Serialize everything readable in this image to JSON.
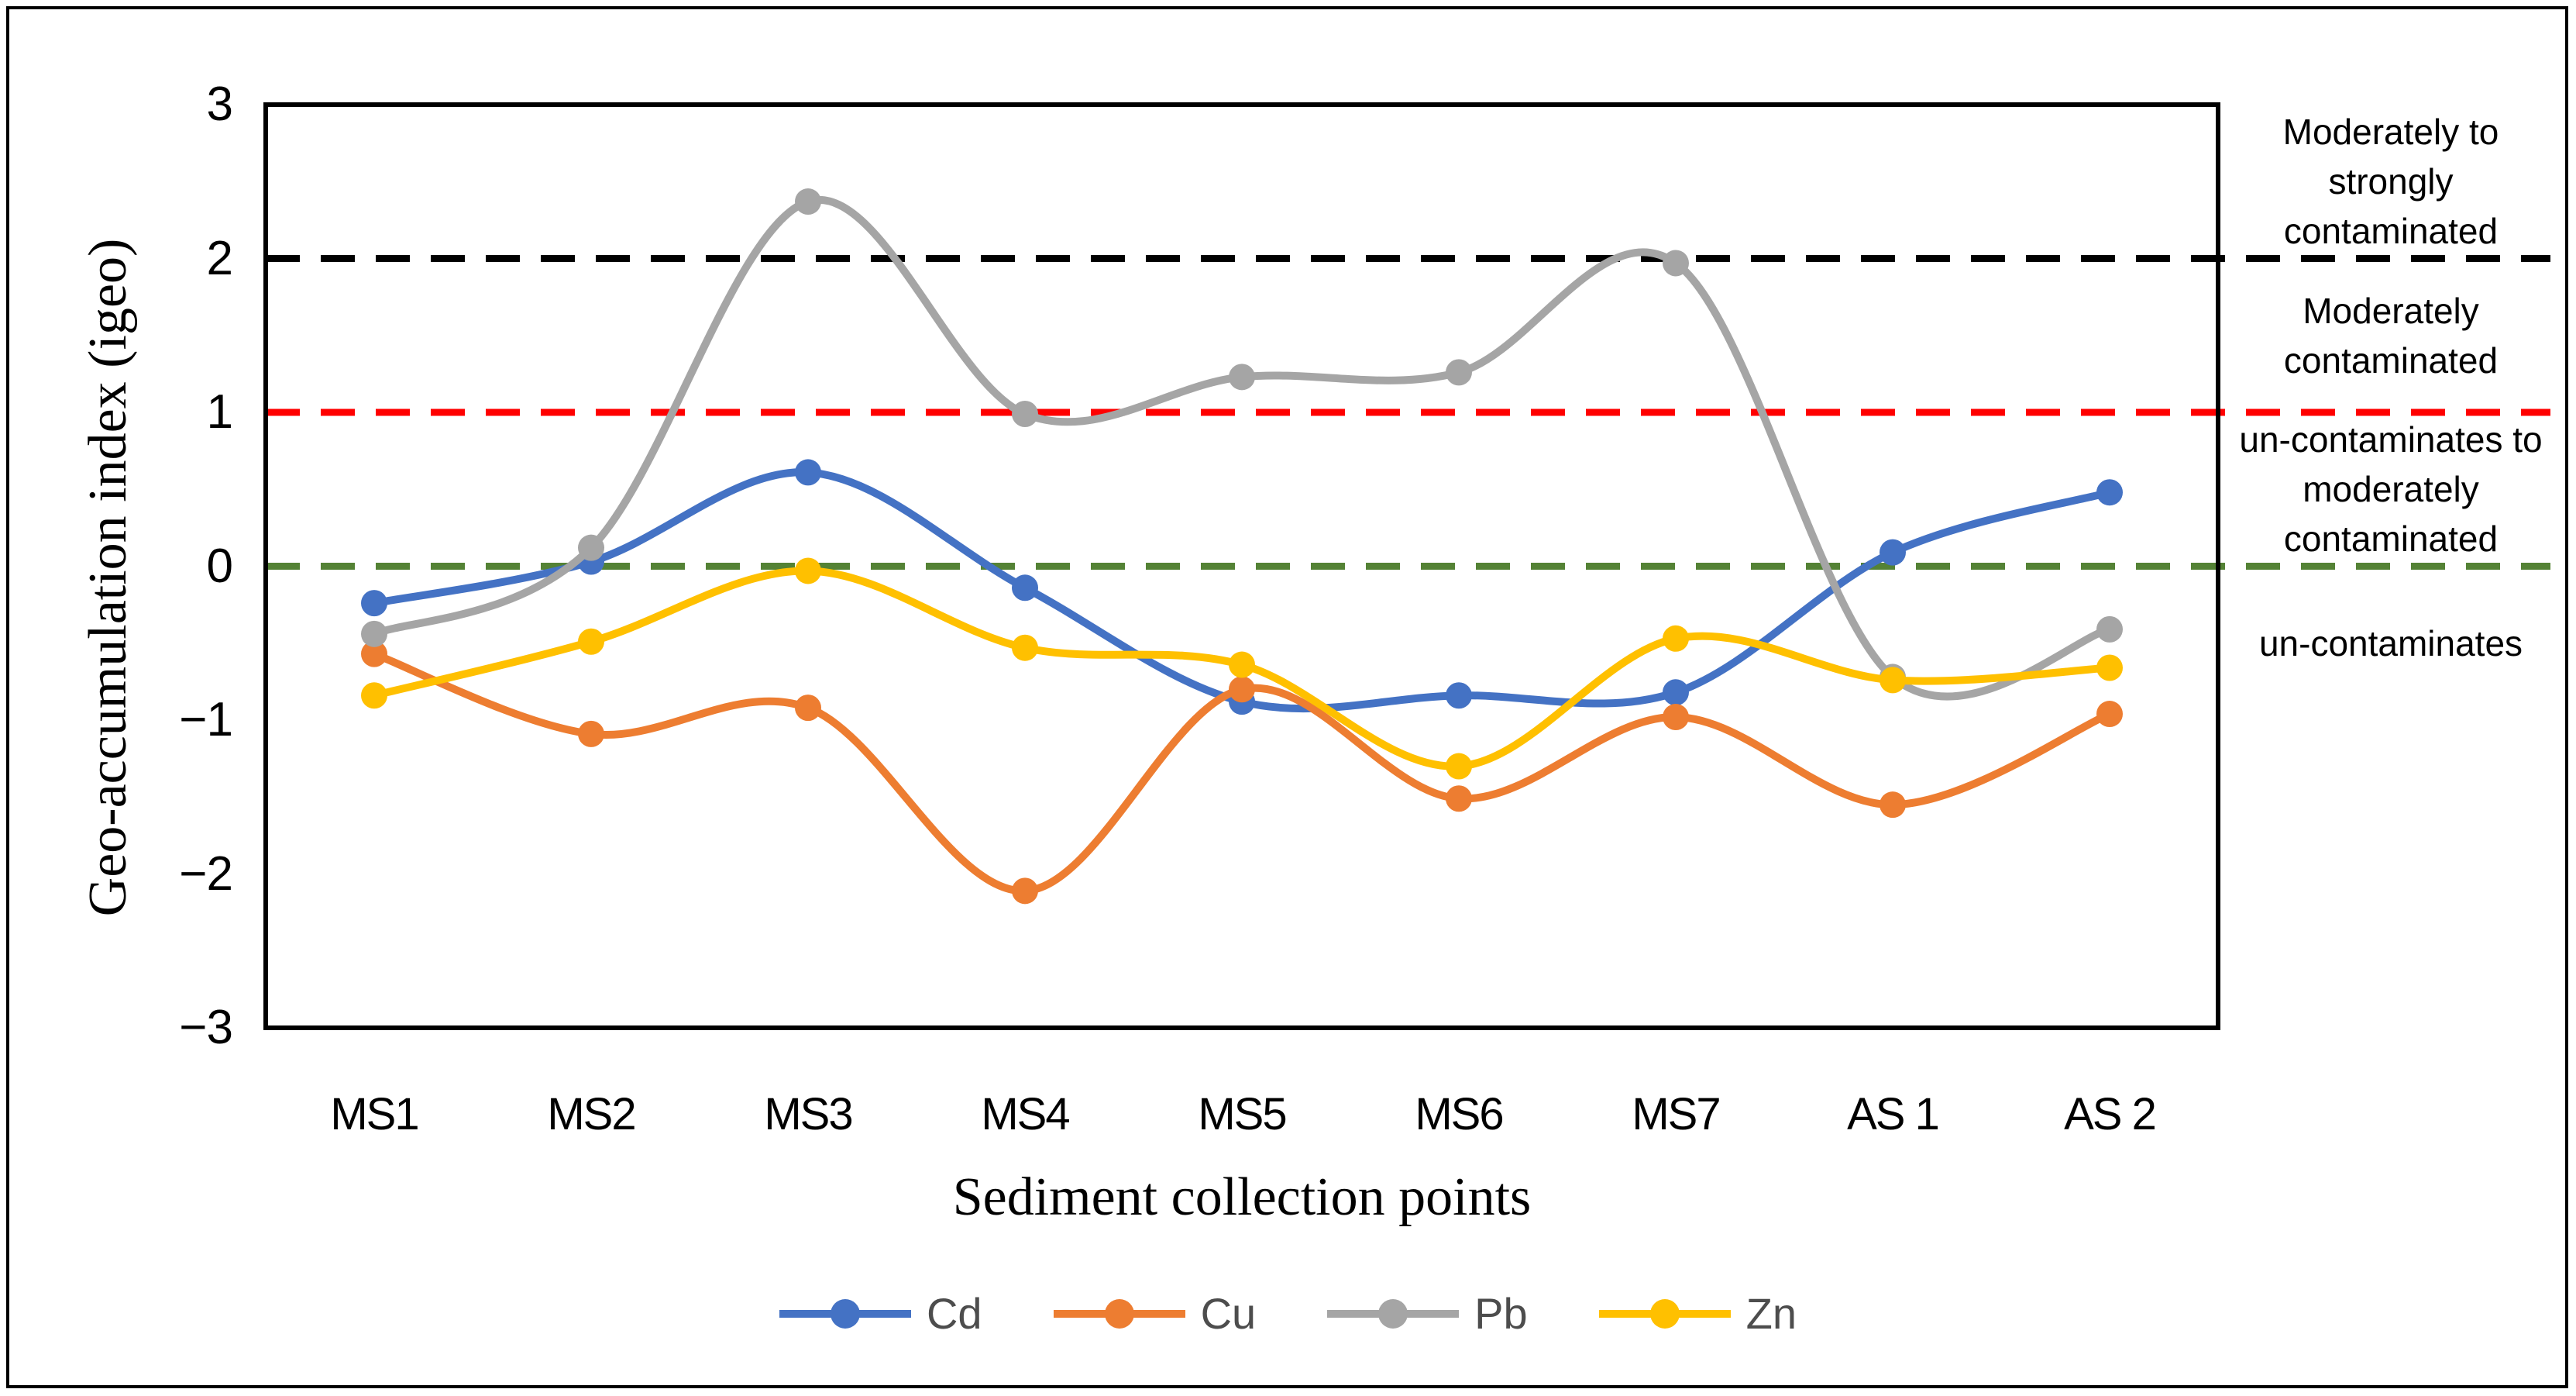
{
  "chart_data": {
    "type": "line",
    "title": "",
    "xlabel": "Sediment collection points",
    "ylabel": "Geo-accumulation index (igeo)",
    "ylim": [
      -3,
      3
    ],
    "grid": false,
    "line_smoothing": true,
    "legend_position": "bottom",
    "categories": [
      "MS1",
      "MS2",
      "MS3",
      "MS4",
      "MS5",
      "MS6",
      "MS7",
      "AS 1",
      "AS 2"
    ],
    "y_ticks": [
      {
        "label": "3",
        "value": 3
      },
      {
        "label": "2",
        "value": 2
      },
      {
        "label": "1",
        "value": 1
      },
      {
        "label": "0",
        "value": 0
      },
      {
        "label": "−1",
        "value": -1
      },
      {
        "label": "−2",
        "value": -2
      },
      {
        "label": "−3",
        "value": -3
      }
    ],
    "series": [
      {
        "name": "Cd",
        "color": "#4472C4",
        "values": [
          -0.24,
          0.03,
          0.61,
          -0.14,
          -0.88,
          -0.84,
          -0.82,
          0.09,
          0.48
        ]
      },
      {
        "name": "Cu",
        "color": "#ED7D31",
        "values": [
          -0.57,
          -1.09,
          -0.92,
          -2.11,
          -0.8,
          -1.51,
          -0.98,
          -1.55,
          -0.96
        ]
      },
      {
        "name": "Pb",
        "color": "#A5A5A5",
        "values": [
          -0.44,
          0.12,
          2.37,
          0.99,
          1.23,
          1.26,
          1.97,
          -0.72,
          -0.41
        ]
      },
      {
        "name": "Zn",
        "color": "#FFC000",
        "values": [
          -0.84,
          -0.49,
          -0.03,
          -0.53,
          -0.64,
          -1.3,
          -0.47,
          -0.74,
          -0.66
        ]
      }
    ],
    "reference_lines": [
      {
        "value": 2,
        "color": "#000000",
        "style": "dashed"
      },
      {
        "value": 1,
        "color": "#FF0000",
        "style": "dashed"
      },
      {
        "value": 0,
        "color": "#548235",
        "style": "dashed"
      }
    ]
  },
  "annotations": {
    "zones": [
      {
        "label": "Moderately to\nstrongly\ncontaminated",
        "from": 2,
        "to": 3
      },
      {
        "label": "Moderately\ncontaminated",
        "from": 1,
        "to": 2
      },
      {
        "label": "un-contaminates to\nmoderately\ncontaminated",
        "from": 0,
        "to": 1
      },
      {
        "label": "un-contaminates",
        "from": -1,
        "to": 0
      }
    ]
  }
}
